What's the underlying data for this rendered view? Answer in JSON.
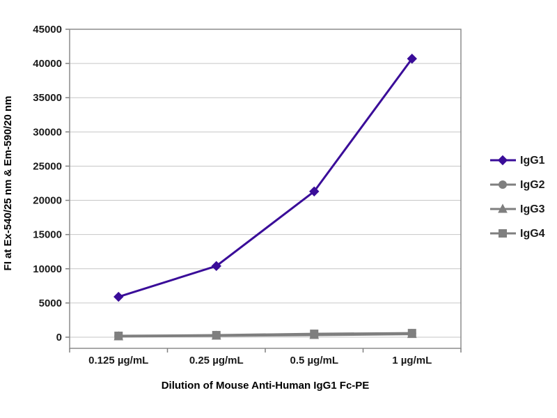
{
  "chart_data": {
    "type": "line",
    "title": "",
    "xlabel": "Dilution of Mouse Anti-Human IgG1 Fc-PE",
    "ylabel": "FI at Ex-540/25 nm & Em-590/20 nm",
    "categories": [
      "0.125 µg/mL",
      "0.25 µg/mL",
      "0.5 µg/mL",
      "1 µg/mL"
    ],
    "ylim": [
      0,
      45000
    ],
    "ytick_step": 5000,
    "grid": true,
    "legend_position": "right",
    "colors": {
      "igg1": "#3a0d99",
      "gray_series": "#7f7f7f",
      "gridline": "#c6c6c6",
      "plot_border": "#8c8c8c",
      "tick": "#808080"
    },
    "series": [
      {
        "name": "IgG1",
        "marker": "diamond",
        "color": "#3a0d99",
        "values": [
          5900,
          10400,
          21300,
          40700
        ]
      },
      {
        "name": "IgG2",
        "marker": "circle",
        "color": "#7f7f7f",
        "values": [
          150,
          250,
          450,
          550
        ]
      },
      {
        "name": "IgG3",
        "marker": "triangle",
        "color": "#7f7f7f",
        "values": [
          100,
          200,
          300,
          450
        ]
      },
      {
        "name": "IgG4",
        "marker": "square",
        "color": "#7f7f7f",
        "values": [
          200,
          300,
          500,
          600
        ]
      }
    ]
  }
}
